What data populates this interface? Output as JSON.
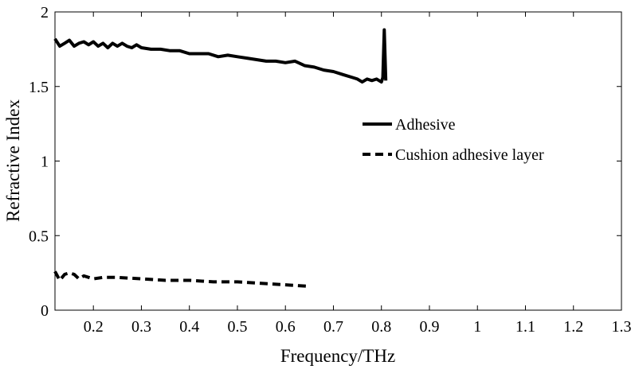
{
  "chart_data": {
    "type": "line",
    "title": "",
    "xlabel": "Frequency/THz",
    "ylabel": "Refractive Index",
    "xlim": [
      0.12,
      1.3
    ],
    "ylim": [
      0,
      2
    ],
    "xticks": [
      0.2,
      0.3,
      0.4,
      0.5,
      0.6,
      0.7,
      0.8,
      0.9,
      1.0,
      1.1,
      1.2,
      1.3
    ],
    "xtick_labels": [
      "0.2",
      "0.3",
      "0.4",
      "0.5",
      "0.6",
      "0.7",
      "0.8",
      "0.9",
      "1",
      "1.1",
      "1.2",
      "1.3"
    ],
    "yticks": [
      0,
      0.5,
      1.0,
      1.5,
      2.0
    ],
    "ytick_labels": [
      "0",
      "0.5",
      "1",
      "1.5",
      "2"
    ],
    "grid": false,
    "legend_position": "right",
    "series": [
      {
        "name": "Adhesive",
        "style": "solid",
        "color": "#000000",
        "x": [
          0.12,
          0.13,
          0.14,
          0.15,
          0.16,
          0.17,
          0.18,
          0.19,
          0.2,
          0.21,
          0.22,
          0.23,
          0.24,
          0.25,
          0.26,
          0.27,
          0.28,
          0.29,
          0.3,
          0.32,
          0.34,
          0.36,
          0.38,
          0.4,
          0.42,
          0.44,
          0.46,
          0.48,
          0.5,
          0.52,
          0.54,
          0.56,
          0.58,
          0.6,
          0.62,
          0.64,
          0.66,
          0.68,
          0.7,
          0.72,
          0.74,
          0.75,
          0.76,
          0.77,
          0.78,
          0.79,
          0.8,
          0.803,
          0.806,
          0.809
        ],
        "y": [
          1.82,
          1.77,
          1.79,
          1.81,
          1.77,
          1.79,
          1.8,
          1.78,
          1.8,
          1.77,
          1.79,
          1.76,
          1.79,
          1.77,
          1.79,
          1.77,
          1.76,
          1.78,
          1.76,
          1.75,
          1.75,
          1.74,
          1.74,
          1.72,
          1.72,
          1.72,
          1.7,
          1.71,
          1.7,
          1.69,
          1.68,
          1.67,
          1.67,
          1.66,
          1.67,
          1.64,
          1.63,
          1.61,
          1.6,
          1.58,
          1.56,
          1.55,
          1.53,
          1.55,
          1.54,
          1.55,
          1.53,
          1.56,
          1.88,
          1.54
        ]
      },
      {
        "name": "Cushion adhesive layer",
        "style": "dashed",
        "color": "#000000",
        "x": [
          0.12,
          0.13,
          0.14,
          0.15,
          0.16,
          0.17,
          0.18,
          0.2,
          0.22,
          0.25,
          0.3,
          0.35,
          0.4,
          0.45,
          0.5,
          0.55,
          0.6,
          0.65
        ],
        "y": [
          0.26,
          0.2,
          0.24,
          0.25,
          0.24,
          0.21,
          0.23,
          0.21,
          0.22,
          0.22,
          0.21,
          0.2,
          0.2,
          0.19,
          0.19,
          0.18,
          0.17,
          0.16
        ]
      }
    ]
  }
}
